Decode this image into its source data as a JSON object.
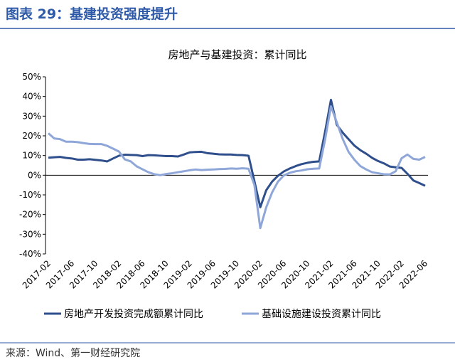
{
  "header": {
    "title": "图表 29：基建投资强度提升"
  },
  "chart_data": {
    "type": "line",
    "title": "房地产与基建投资：累计同比",
    "categories": [
      "2017-02",
      null,
      null,
      null,
      "2017-06",
      null,
      null,
      null,
      "2017-10",
      null,
      null,
      null,
      "2018-02",
      null,
      null,
      null,
      "2018-06",
      null,
      null,
      null,
      "2018-10",
      null,
      null,
      null,
      "2019-02",
      null,
      null,
      null,
      "2019-06",
      null,
      null,
      null,
      "2019-10",
      null,
      null,
      null,
      "2020-02",
      null,
      null,
      null,
      "2020-06",
      null,
      null,
      null,
      "2020-10",
      null,
      null,
      null,
      "2021-02",
      null,
      null,
      null,
      "2021-06",
      null,
      null,
      null,
      "2021-10",
      null,
      null,
      null,
      "2022-02",
      null,
      null,
      null,
      "2022-06"
    ],
    "series": [
      {
        "name": "房地产开发投资完成额累计同比",
        "color": "#2f4f8c",
        "values": [
          8.9,
          9.1,
          9.3,
          8.8,
          8.5,
          7.9,
          7.9,
          8.1,
          7.8,
          7.5,
          7.0,
          8.5,
          9.9,
          10.4,
          10.3,
          10.2,
          9.7,
          10.2,
          10.1,
          9.9,
          9.7,
          9.7,
          9.5,
          10.5,
          11.6,
          11.8,
          11.9,
          11.2,
          10.9,
          10.6,
          10.5,
          10.5,
          10.3,
          10.2,
          9.9,
          -3,
          -16.3,
          -7.7,
          -3.3,
          -0.3,
          1.9,
          3.4,
          4.6,
          5.6,
          6.3,
          6.8,
          7.0,
          22,
          38.3,
          25.6,
          21.6,
          18.3,
          15.0,
          12.7,
          10.9,
          8.8,
          7.2,
          6.0,
          4.4,
          4,
          3.7,
          0.7,
          -2.7,
          -4.0,
          -5.4
        ]
      },
      {
        "name": "基础设施建设投资累计同比",
        "color": "#8ea6d8",
        "values": [
          21.3,
          18.7,
          18.3,
          17.0,
          17.0,
          16.8,
          16.3,
          15.9,
          15.8,
          15.8,
          14.9,
          13.5,
          12.0,
          8.0,
          7.0,
          4.5,
          3.0,
          1.5,
          0.5,
          0.0,
          0.6,
          1.0,
          1.5,
          2.0,
          2.5,
          2.9,
          2.6,
          2.8,
          2.9,
          3.1,
          3.2,
          3.4,
          3.3,
          3.5,
          3.3,
          -5,
          -26.9,
          -16.4,
          -8.8,
          -3.3,
          -0.1,
          1.2,
          2.0,
          2.4,
          3.0,
          3.3,
          3.4,
          18,
          35.0,
          26.8,
          18.4,
          11.8,
          7.8,
          4.6,
          2.9,
          1.5,
          1.0,
          0.5,
          0.4,
          2,
          8.6,
          10.5,
          8.3,
          7.9,
          9.3
        ]
      }
    ],
    "ylim": [
      -40,
      50
    ],
    "yticks": [
      {
        "value": -40,
        "label": "-40%"
      },
      {
        "value": -30,
        "label": "-30%"
      },
      {
        "value": -20,
        "label": "-20%"
      },
      {
        "value": -10,
        "label": "-10%"
      },
      {
        "value": 0,
        "label": "0%"
      },
      {
        "value": 10,
        "label": "10%"
      },
      {
        "value": 20,
        "label": "20%"
      },
      {
        "value": 30,
        "label": "30%"
      },
      {
        "value": 40,
        "label": "40%"
      },
      {
        "value": 50,
        "label": "50%"
      }
    ],
    "grid": false
  },
  "source": "来源：Wind、第一财经研究院"
}
